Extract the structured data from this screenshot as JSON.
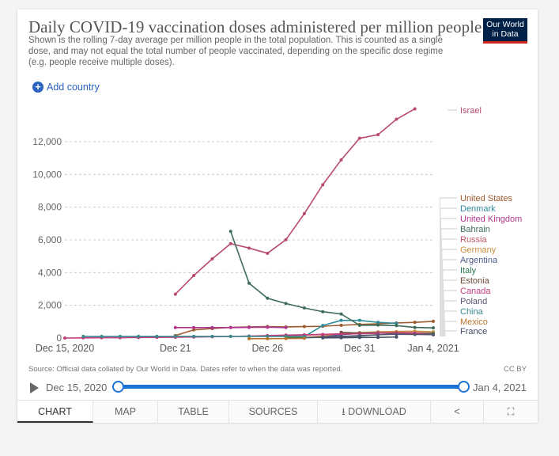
{
  "header": {
    "title": "Daily COVID-19 vaccination doses administered per million people",
    "subtitle": "Shown is the rolling 7-day average per million people in the total population. This is counted as a single dose, and may not equal the total number of people vaccinated, depending on the specific dose regime (e.g. people receive multiple doses).",
    "logo": "Our World in Data",
    "add_country": "Add country"
  },
  "footer": {
    "source": "Source: Official data collated by Our World in Data. Dates refer to when the data was reported.",
    "license": "CC BY"
  },
  "timeline": {
    "start": "Dec 15, 2020",
    "end": "Jan 4, 2021",
    "accent": "#1a73d2"
  },
  "tabs": [
    {
      "label": "CHART",
      "active": true
    },
    {
      "label": "MAP"
    },
    {
      "label": "TABLE"
    },
    {
      "label": "SOURCES"
    },
    {
      "label": "DOWNLOAD",
      "icon": "download-icon"
    },
    {
      "label": "",
      "icon": "share-icon"
    },
    {
      "label": "",
      "icon": "fullscreen-icon"
    }
  ],
  "chart_data": {
    "type": "line",
    "title": "Daily COVID-19 vaccination doses administered per million people",
    "ylim": [
      0,
      14000
    ],
    "yticks": [
      "0",
      "2,000",
      "4,000",
      "6,000",
      "8,000",
      "10,000",
      "12,000"
    ],
    "ytick_values": [
      0,
      2000,
      4000,
      6000,
      8000,
      10000,
      12000
    ],
    "xticks": [
      "Dec 15, 2020",
      "Dec 21",
      "Dec 26",
      "Dec 31",
      "Jan 4, 2021"
    ],
    "xtick_dates": [
      "2020-12-15",
      "2020-12-21",
      "2020-12-26",
      "2020-12-31",
      "2021-01-04"
    ],
    "grid": "horizontal dashed",
    "legend": "right, labels at line ends",
    "x": [
      "2020-12-15",
      "2020-12-16",
      "2020-12-17",
      "2020-12-18",
      "2020-12-19",
      "2020-12-20",
      "2020-12-21",
      "2020-12-22",
      "2020-12-23",
      "2020-12-24",
      "2020-12-25",
      "2020-12-26",
      "2020-12-27",
      "2020-12-28",
      "2020-12-29",
      "2020-12-30",
      "2020-12-31",
      "2021-01-01",
      "2021-01-02",
      "2021-01-03",
      "2021-01-04"
    ],
    "series": [
      {
        "name": "Israel",
        "color": "#b84a72",
        "values": [
          null,
          null,
          null,
          null,
          null,
          null,
          2680,
          3820,
          4840,
          5770,
          5500,
          5180,
          6010,
          7600,
          9370,
          10890,
          12210,
          12430,
          13370,
          14010,
          null
        ]
      },
      {
        "name": "United States",
        "color": "#9a5a2c",
        "values": [
          null,
          null,
          null,
          null,
          null,
          null,
          150,
          500,
          580,
          650,
          680,
          700,
          680,
          700,
          720,
          780,
          830,
          870,
          920,
          960,
          1020
        ]
      },
      {
        "name": "Denmark",
        "color": "#2f8a9a",
        "values": [
          null,
          null,
          null,
          null,
          null,
          null,
          null,
          null,
          null,
          null,
          null,
          null,
          50,
          80,
          770,
          1080,
          1080,
          960,
          900,
          null,
          null
        ]
      },
      {
        "name": "United Kingdom",
        "color": "#b0368f",
        "values": [
          null,
          null,
          null,
          null,
          null,
          null,
          640,
          640,
          640,
          640,
          650,
          660,
          640,
          null,
          null,
          null,
          null,
          null,
          null,
          null,
          null
        ]
      },
      {
        "name": "Bahrain",
        "color": "#3d6b58",
        "values": [
          null,
          null,
          null,
          null,
          null,
          null,
          null,
          null,
          null,
          6520,
          3350,
          2430,
          2110,
          1840,
          1610,
          1470,
          780,
          790,
          760,
          650,
          620
        ]
      },
      {
        "name": "Russia",
        "color": "#c4566a",
        "values": [
          null,
          null,
          null,
          null,
          null,
          null,
          null,
          null,
          null,
          null,
          null,
          120,
          150,
          180,
          220,
          260,
          300,
          330,
          350,
          320,
          300
        ]
      },
      {
        "name": "Germany",
        "color": "#c98b3d",
        "values": [
          null,
          null,
          null,
          null,
          null,
          null,
          null,
          null,
          null,
          null,
          null,
          null,
          20,
          40,
          120,
          250,
          330,
          380,
          400,
          420,
          380
        ]
      },
      {
        "name": "Argentina",
        "color": "#4b5a8c",
        "values": [
          null,
          null,
          null,
          null,
          null,
          null,
          null,
          null,
          null,
          null,
          null,
          null,
          null,
          null,
          60,
          200,
          300,
          320,
          280,
          250,
          200
        ]
      },
      {
        "name": "Italy",
        "color": "#2d7a52",
        "values": [
          null,
          null,
          null,
          null,
          null,
          null,
          null,
          null,
          null,
          null,
          null,
          null,
          10,
          20,
          40,
          80,
          120,
          200,
          260,
          280,
          270
        ]
      },
      {
        "name": "Estonia",
        "color": "#6b4a36",
        "values": [
          null,
          null,
          null,
          null,
          null,
          null,
          null,
          null,
          null,
          null,
          null,
          null,
          null,
          null,
          null,
          350,
          300,
          280,
          null,
          null,
          null
        ]
      },
      {
        "name": "Canada",
        "color": "#c23d7d",
        "values": [
          0,
          10,
          20,
          20,
          30,
          40,
          50,
          60,
          80,
          100,
          120,
          150,
          180,
          200,
          220,
          240,
          260,
          300,
          320,
          300,
          200
        ]
      },
      {
        "name": "Poland",
        "color": "#58546e",
        "values": [
          null,
          null,
          null,
          null,
          null,
          null,
          null,
          null,
          null,
          null,
          null,
          null,
          null,
          30,
          60,
          100,
          150,
          200,
          230,
          220,
          210
        ]
      },
      {
        "name": "China",
        "color": "#3a8a8f",
        "values": [
          null,
          100,
          100,
          100,
          100,
          100,
          100,
          100,
          100,
          100,
          100,
          100,
          100,
          100,
          null,
          null,
          null,
          null,
          null,
          null,
          null
        ]
      },
      {
        "name": "Mexico",
        "color": "#b8742e",
        "values": [
          null,
          null,
          null,
          null,
          null,
          null,
          null,
          null,
          null,
          null,
          -40,
          -40,
          -30,
          -20,
          null,
          null,
          null,
          null,
          null,
          null,
          null
        ]
      },
      {
        "name": "France",
        "color": "#444c66",
        "values": [
          null,
          null,
          null,
          null,
          null,
          null,
          null,
          null,
          null,
          null,
          null,
          null,
          null,
          null,
          10,
          20,
          30,
          40,
          60,
          null,
          null
        ]
      }
    ]
  }
}
